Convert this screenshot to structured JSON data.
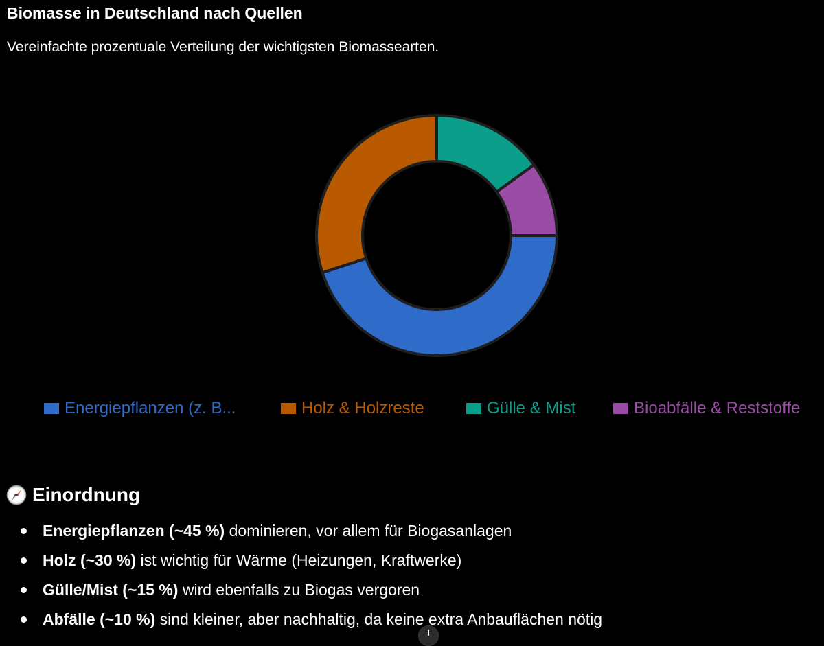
{
  "chart_data": {
    "type": "pie",
    "variant": "donut",
    "title": "Biomasse in Deutschland nach Quellen",
    "subtitle": "Vereinfachte prozentuale Verteilung der wichtigsten Biomassearten.",
    "categories": [
      "Energiepflanzen (z. B...",
      "Holz & Holzreste",
      "Gülle & Mist",
      "Bioabfälle & Reststoffe"
    ],
    "values": [
      45,
      30,
      15,
      10
    ],
    "colors": [
      "#2f6bc9",
      "#b95a00",
      "#0b9e8a",
      "#9a4ca6"
    ],
    "legend_position": "bottom",
    "start": "right, clockwise"
  },
  "section": {
    "icon": "compass-icon",
    "heading": "Einordnung",
    "bullets": [
      {
        "bold": "Energiepflanzen (~45 %)",
        "text": " dominieren, vor allem für Biogasanlagen"
      },
      {
        "bold": "Holz (~30 %)",
        "text": " ist wichtig für Wärme (Heizungen, Kraftwerke)"
      },
      {
        "bold": "Gülle/Mist (~15 %)",
        "text": " wird ebenfalls zu Biogas vergoren"
      },
      {
        "bold": "Abfälle (~10 %)",
        "text": " sind kleiner, aber nachhaltig, da keine extra Anbauflächen nötig"
      }
    ]
  },
  "scroll_button": {
    "icon": "arrow-down-icon"
  }
}
